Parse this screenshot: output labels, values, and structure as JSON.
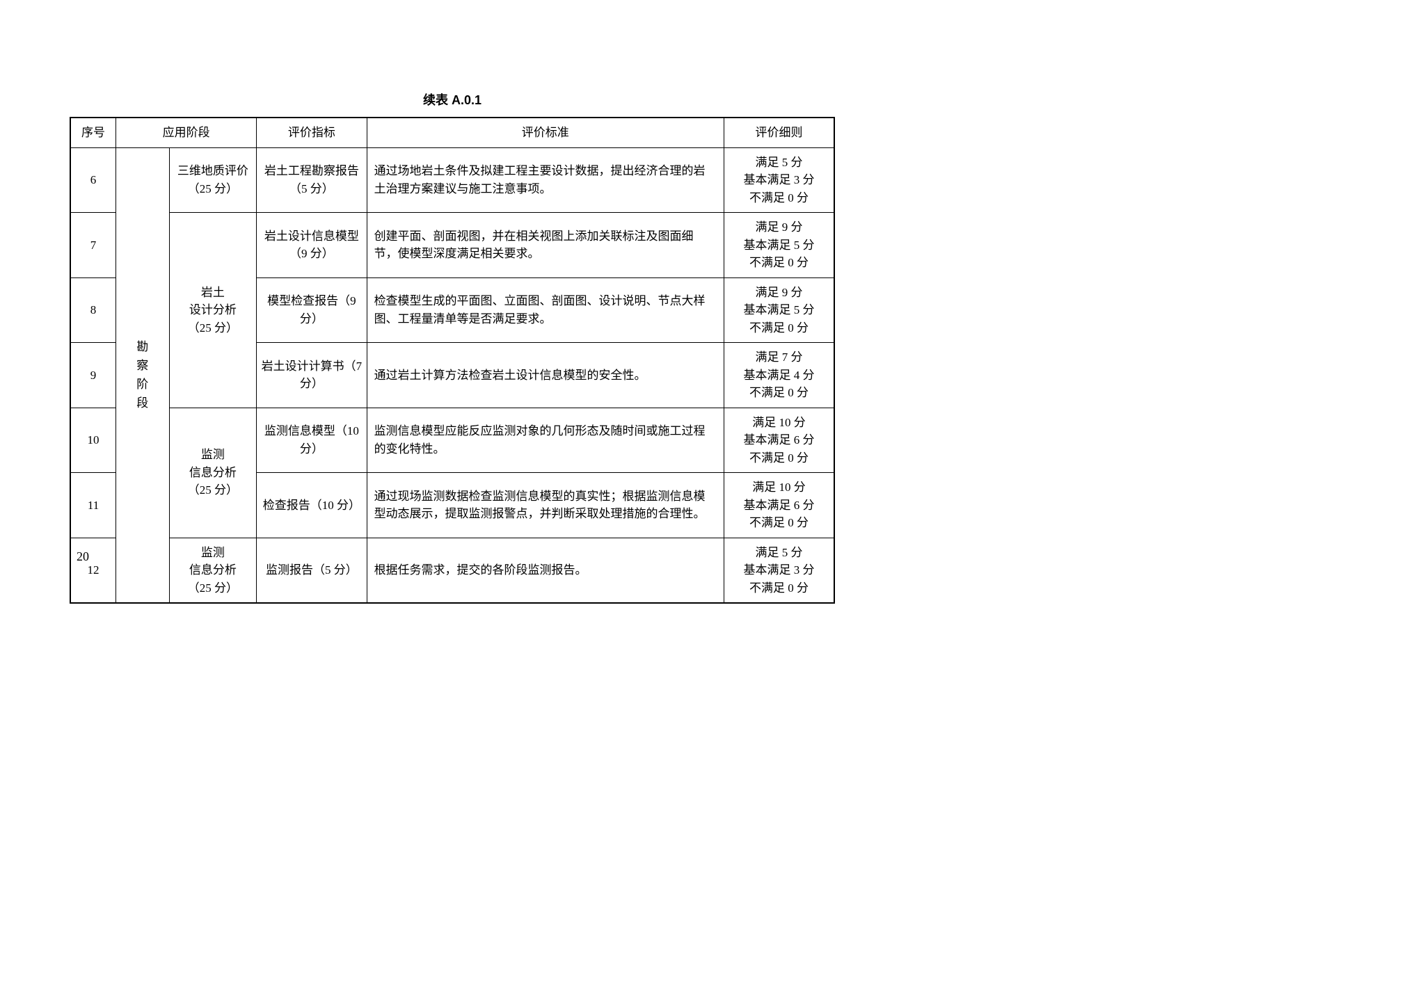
{
  "caption": "续表  A.0.1",
  "page_number": "20",
  "columns": {
    "seq": "序号",
    "phase": "应用阶段",
    "indicator": "评价指标",
    "standard": "评价标准",
    "rule": "评价细则"
  },
  "phase_label": "勘察阶段",
  "groups": {
    "g1": {
      "name": "三维地质评价（25 分）"
    },
    "g2": {
      "name": "岩土\n设计分析\n（25 分）"
    },
    "g3": {
      "name": "监测\n信息分析\n（25 分）"
    },
    "g4": {
      "name": "监测\n信息分析\n（25 分）"
    }
  },
  "rows": [
    {
      "seq": "6",
      "indicator": "岩土工程勘察报告（5 分）",
      "standard": "通过场地岩土条件及拟建工程主要设计数据，提出经济合理的岩土治理方案建议与施工注意事项。",
      "rule": [
        "满足 5 分",
        "基本满足 3 分",
        "不满足 0 分"
      ]
    },
    {
      "seq": "7",
      "indicator": "岩土设计信息模型（9 分）",
      "standard": "创建平面、剖面视图，并在相关视图上添加关联标注及图面细节，使模型深度满足相关要求。",
      "rule": [
        "满足 9 分",
        "基本满足 5 分",
        "不满足 0 分"
      ]
    },
    {
      "seq": "8",
      "indicator": "模型检查报告（9 分）",
      "standard": "检查模型生成的平面图、立面图、剖面图、设计说明、节点大样图、工程量清单等是否满足要求。",
      "rule": [
        "满足 9 分",
        "基本满足 5 分",
        "不满足 0 分"
      ]
    },
    {
      "seq": "9",
      "indicator": "岩土设计计算书（7 分）",
      "standard": "通过岩土计算方法检查岩土设计信息模型的安全性。",
      "rule": [
        "满足 7 分",
        "基本满足 4 分",
        "不满足 0 分"
      ]
    },
    {
      "seq": "10",
      "indicator": "监测信息模型（10 分）",
      "standard": "监测信息模型应能反应监测对象的几何形态及随时间或施工过程的变化特性。",
      "rule": [
        "满足 10 分",
        "基本满足 6 分",
        "不满足 0 分"
      ]
    },
    {
      "seq": "11",
      "indicator": "检查报告（10 分）",
      "standard": "通过现场监测数据检查监测信息模型的真实性；根据监测信息模型动态展示，提取监测报警点，并判断采取处理措施的合理性。",
      "rule": [
        "满足 10 分",
        "基本满足 6 分",
        "不满足 0 分"
      ]
    },
    {
      "seq": "12",
      "indicator": "监测报告（5 分）",
      "standard": "根据任务需求，提交的各阶段监测报告。",
      "rule": [
        "满足 5 分",
        "基本满足 3 分",
        "不满足 0 分"
      ]
    }
  ]
}
